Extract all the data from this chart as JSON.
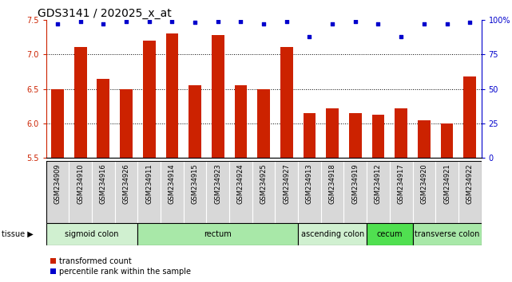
{
  "title": "GDS3141 / 202025_x_at",
  "samples": [
    "GSM234909",
    "GSM234910",
    "GSM234916",
    "GSM234926",
    "GSM234911",
    "GSM234914",
    "GSM234915",
    "GSM234923",
    "GSM234924",
    "GSM234925",
    "GSM234927",
    "GSM234913",
    "GSM234918",
    "GSM234919",
    "GSM234912",
    "GSM234917",
    "GSM234920",
    "GSM234921",
    "GSM234922"
  ],
  "bar_values": [
    6.5,
    7.1,
    6.65,
    6.5,
    7.2,
    7.3,
    6.55,
    7.28,
    6.55,
    6.5,
    7.1,
    6.15,
    6.22,
    6.15,
    6.12,
    6.22,
    6.05,
    6.0,
    6.68
  ],
  "percentile_values": [
    97,
    99,
    97,
    99,
    99,
    99,
    98,
    99,
    99,
    97,
    99,
    88,
    97,
    99,
    97,
    88,
    97,
    97,
    98
  ],
  "tissue_groups": [
    {
      "label": "sigmoid colon",
      "start": 0,
      "end": 3,
      "color": "#d0f0d0"
    },
    {
      "label": "rectum",
      "start": 4,
      "end": 10,
      "color": "#a8e8a8"
    },
    {
      "label": "ascending colon",
      "start": 11,
      "end": 13,
      "color": "#d0f0d0"
    },
    {
      "label": "cecum",
      "start": 14,
      "end": 15,
      "color": "#50e050"
    },
    {
      "label": "transverse colon",
      "start": 16,
      "end": 18,
      "color": "#a8e8a8"
    }
  ],
  "bar_color": "#cc2200",
  "dot_color": "#0000cc",
  "ylim_left": [
    5.5,
    7.5
  ],
  "ylim_right": [
    0,
    100
  ],
  "yticks_left": [
    5.5,
    6.0,
    6.5,
    7.0,
    7.5
  ],
  "yticks_right": [
    0,
    25,
    50,
    75,
    100
  ],
  "ylabel_right_labels": [
    "0",
    "25",
    "50",
    "75",
    "100%"
  ],
  "grid_values": [
    6.0,
    6.5,
    7.0
  ],
  "sample_bg_color": "#d8d8d8",
  "title_fontsize": 10,
  "tick_fontsize": 7,
  "sample_fontsize": 6,
  "tissue_fontsize": 7,
  "legend_label_red": "transformed count",
  "legend_label_blue": "percentile rank within the sample"
}
